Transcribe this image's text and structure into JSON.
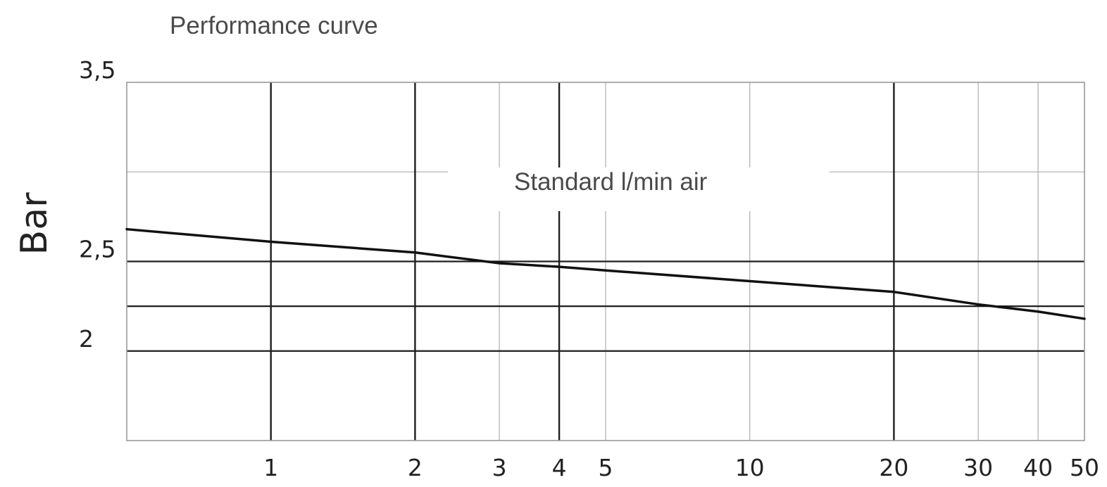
{
  "chart_data": {
    "type": "line",
    "title": "Performance curve",
    "annotation": "Standard l/min air",
    "ylabel": "Bar",
    "xlabel": "",
    "x_scale": "log",
    "xlim": [
      0.5,
      50
    ],
    "ylim": [
      1.5,
      3.5
    ],
    "x_ticks": [
      {
        "value": 1,
        "label": "1"
      },
      {
        "value": 2,
        "label": "2"
      },
      {
        "value": 3,
        "label": "3"
      },
      {
        "value": 4,
        "label": "4"
      },
      {
        "value": 5,
        "label": "5"
      },
      {
        "value": 10,
        "label": "10"
      },
      {
        "value": 20,
        "label": "20"
      },
      {
        "value": 30,
        "label": "30"
      },
      {
        "value": 40,
        "label": "40"
      },
      {
        "value": 50,
        "label": "50"
      }
    ],
    "x_major_gridlines": [
      1,
      2,
      4,
      20
    ],
    "x_minor_gridlines": [
      3,
      5,
      10,
      30,
      40
    ],
    "y_ticks": [
      {
        "value": 2,
        "label": "2"
      },
      {
        "value": 2.5,
        "label": "2,5"
      },
      {
        "value": 3.5,
        "label": "3,5"
      }
    ],
    "y_gridlines": [
      {
        "value": 2,
        "style": "major"
      },
      {
        "value": 2.5,
        "style": "major"
      },
      {
        "value": 2.25,
        "style": "major"
      },
      {
        "value": 3,
        "style": "minor"
      }
    ],
    "grid": true,
    "series": [
      {
        "color": "#111111",
        "x": [
          0.5,
          1,
          2,
          3,
          4,
          5,
          10,
          20,
          30,
          40,
          50
        ],
        "y": [
          2.68,
          2.61,
          2.55,
          2.49,
          2.47,
          2.45,
          2.39,
          2.33,
          2.26,
          2.22,
          2.18
        ]
      }
    ]
  }
}
